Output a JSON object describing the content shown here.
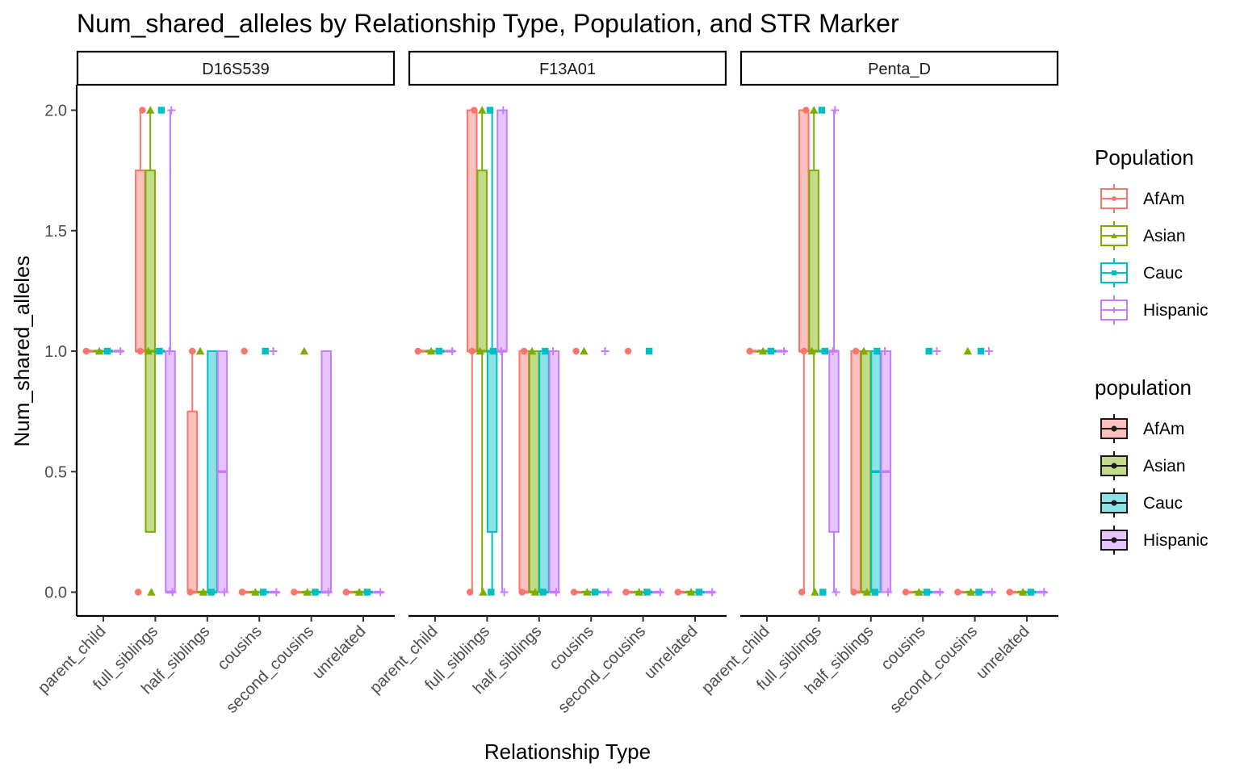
{
  "chart_data": {
    "type": "boxplot",
    "title": "Num_shared_alleles by Relationship Type, Population, and STR Marker",
    "xlabel": "Relationship Type",
    "ylabel": "Num_shared_alleles",
    "ylim": [
      -0.1,
      2.1
    ],
    "yticks": [
      "0.0",
      "0.5",
      "1.0",
      "1.5",
      "2.0"
    ],
    "ytick_values": [
      0,
      0.5,
      1,
      1.5,
      2
    ],
    "grid": false,
    "facets": [
      "D16S539",
      "F13A01",
      "Penta_D"
    ],
    "categories": [
      "parent_child",
      "full_siblings",
      "half_siblings",
      "cousins",
      "second_cousins",
      "unrelated"
    ],
    "populations": [
      "AfAm",
      "Asian",
      "Cauc",
      "Hispanic"
    ],
    "colors": {
      "AfAm": "#F8766D",
      "Asian": "#7CAE00",
      "Cauc": "#00BFC4",
      "Hispanic": "#C77CFF"
    },
    "shapes": {
      "AfAm": "circle",
      "Asian": "triangle",
      "Cauc": "square",
      "Hispanic": "plus"
    },
    "legends": [
      {
        "title": "Population",
        "style": "outline",
        "position": "right",
        "items": [
          "AfAm",
          "Asian",
          "Cauc",
          "Hispanic"
        ]
      },
      {
        "title": "population",
        "style": "filled",
        "position": "right",
        "items": [
          "AfAm",
          "Asian",
          "Cauc",
          "Hispanic"
        ]
      }
    ],
    "boxes": {
      "D16S539": {
        "parent_child": [
          [
            1,
            1,
            1,
            1,
            1
          ],
          [
            1,
            1,
            1,
            1,
            1
          ],
          [
            1,
            1,
            1,
            1,
            1
          ],
          [
            1,
            1,
            1,
            1,
            1
          ]
        ],
        "full_siblings": [
          [
            1,
            1,
            1,
            1.75,
            2
          ],
          [
            0.25,
            0.25,
            1,
            1.75,
            2
          ],
          [
            1,
            1,
            1,
            1,
            1
          ],
          [
            0,
            0,
            0,
            1,
            2
          ]
        ],
        "half_siblings": [
          [
            0,
            0,
            0,
            0.75,
            1
          ],
          [
            0,
            0,
            0,
            0,
            0
          ],
          [
            0,
            0,
            0,
            1,
            1
          ],
          [
            0,
            0,
            0.5,
            1,
            1
          ]
        ],
        "cousins": [
          [
            0,
            0,
            0,
            0,
            0
          ],
          [
            0,
            0,
            0,
            0,
            0
          ],
          [
            0,
            0,
            0,
            0,
            0
          ],
          [
            0,
            0,
            0,
            0,
            0
          ]
        ],
        "second_cousins": [
          [
            0,
            0,
            0,
            0,
            0
          ],
          [
            0,
            0,
            0,
            0,
            0
          ],
          [
            0,
            0,
            0,
            0,
            0
          ],
          [
            0,
            0,
            0,
            1,
            1
          ]
        ],
        "unrelated": [
          [
            0,
            0,
            0,
            0,
            0
          ],
          [
            0,
            0,
            0,
            0,
            0
          ],
          [
            0,
            0,
            0,
            0,
            0
          ],
          [
            0,
            0,
            0,
            0,
            0
          ]
        ]
      },
      "F13A01": {
        "parent_child": [
          [
            1,
            1,
            1,
            1,
            1
          ],
          [
            1,
            1,
            1,
            1,
            1
          ],
          [
            1,
            1,
            1,
            1,
            1
          ],
          [
            1,
            1,
            1,
            1,
            1
          ]
        ],
        "full_siblings": [
          [
            0,
            1,
            1,
            2,
            2
          ],
          [
            0,
            1,
            1,
            1.75,
            2
          ],
          [
            0,
            0.25,
            1,
            1,
            2
          ],
          [
            0,
            1,
            1,
            2,
            2
          ]
        ],
        "half_siblings": [
          [
            0,
            0,
            0,
            1,
            1
          ],
          [
            0,
            0,
            0,
            1,
            1
          ],
          [
            0,
            0,
            0,
            1,
            1
          ],
          [
            0,
            0,
            0,
            1,
            1
          ]
        ],
        "cousins": [
          [
            0,
            0,
            0,
            0,
            0
          ],
          [
            0,
            0,
            0,
            0,
            0
          ],
          [
            0,
            0,
            0,
            0,
            0
          ],
          [
            0,
            0,
            0,
            0,
            0
          ]
        ],
        "second_cousins": [
          [
            0,
            0,
            0,
            0,
            0
          ],
          [
            0,
            0,
            0,
            0,
            0
          ],
          [
            0,
            0,
            0,
            0,
            0
          ],
          [
            0,
            0,
            0,
            0,
            0
          ]
        ],
        "unrelated": [
          [
            0,
            0,
            0,
            0,
            0
          ],
          [
            0,
            0,
            0,
            0,
            0
          ],
          [
            0,
            0,
            0,
            0,
            0
          ],
          [
            0,
            0,
            0,
            0,
            0
          ]
        ]
      },
      "Penta_D": {
        "parent_child": [
          [
            1,
            1,
            1,
            1,
            1
          ],
          [
            1,
            1,
            1,
            1,
            1
          ],
          [
            1,
            1,
            1,
            1,
            1
          ],
          [
            1,
            1,
            1,
            1,
            1
          ]
        ],
        "full_siblings": [
          [
            0,
            1,
            1,
            2,
            2
          ],
          [
            0,
            1,
            1,
            1.75,
            2
          ],
          [
            1,
            1,
            1,
            1,
            1
          ],
          [
            0,
            0.25,
            1,
            1,
            2
          ]
        ],
        "half_siblings": [
          [
            0,
            0,
            0,
            1,
            1
          ],
          [
            0,
            0,
            0,
            1,
            1
          ],
          [
            0,
            0,
            0.5,
            1,
            1
          ],
          [
            0,
            0,
            0.5,
            1,
            1
          ]
        ],
        "cousins": [
          [
            0,
            0,
            0,
            0,
            0
          ],
          [
            0,
            0,
            0,
            0,
            0
          ],
          [
            0,
            0,
            0,
            0,
            0
          ],
          [
            0,
            0,
            0,
            0,
            0
          ]
        ],
        "second_cousins": [
          [
            0,
            0,
            0,
            0,
            0
          ],
          [
            0,
            0,
            0,
            0,
            0
          ],
          [
            0,
            0,
            0,
            0,
            0
          ],
          [
            0,
            0,
            0,
            0,
            0
          ]
        ],
        "unrelated": [
          [
            0,
            0,
            0,
            0,
            0
          ],
          [
            0,
            0,
            0,
            0,
            0
          ],
          [
            0,
            0,
            0,
            0,
            0
          ],
          [
            0,
            0,
            0,
            0,
            0
          ]
        ]
      }
    },
    "points": {
      "D16S539": {
        "parent_child": [
          [
            1
          ],
          [
            1
          ],
          [
            1
          ],
          [
            1
          ]
        ],
        "full_siblings": [
          [
            0,
            1,
            2
          ],
          [
            0,
            1,
            2
          ],
          [
            1,
            2
          ],
          [
            0,
            1,
            2
          ]
        ],
        "half_siblings": [
          [
            0,
            1
          ],
          [
            0,
            1
          ],
          [
            0
          ],
          [
            0
          ]
        ],
        "cousins": [
          [
            0,
            1
          ],
          [
            0
          ],
          [
            0,
            1
          ],
          [
            0,
            1
          ]
        ],
        "second_cousins": [
          [
            0
          ],
          [
            0,
            1
          ],
          [
            0
          ],
          [
            0
          ]
        ],
        "unrelated": [
          [
            0
          ],
          [
            0
          ],
          [
            0
          ],
          [
            0
          ]
        ]
      },
      "F13A01": {
        "parent_child": [
          [
            1
          ],
          [
            1
          ],
          [
            1
          ],
          [
            1
          ]
        ],
        "full_siblings": [
          [
            0,
            1,
            2
          ],
          [
            0,
            1,
            2
          ],
          [
            0,
            1,
            2
          ],
          [
            0,
            1,
            2
          ]
        ],
        "half_siblings": [
          [
            0,
            1
          ],
          [
            0,
            1
          ],
          [
            0,
            1
          ],
          [
            0,
            1
          ]
        ],
        "cousins": [
          [
            0,
            1
          ],
          [
            0,
            1
          ],
          [
            0
          ],
          [
            0,
            1
          ]
        ],
        "second_cousins": [
          [
            0,
            1
          ],
          [
            0
          ],
          [
            0,
            1
          ],
          [
            0
          ]
        ],
        "unrelated": [
          [
            0
          ],
          [
            0
          ],
          [
            0
          ],
          [
            0
          ]
        ]
      },
      "Penta_D": {
        "parent_child": [
          [
            1
          ],
          [
            1
          ],
          [
            1
          ],
          [
            1
          ]
        ],
        "full_siblings": [
          [
            0,
            1,
            2
          ],
          [
            0,
            1,
            2
          ],
          [
            0,
            1,
            2
          ],
          [
            0,
            1,
            2
          ]
        ],
        "half_siblings": [
          [
            0,
            1
          ],
          [
            0,
            1
          ],
          [
            0,
            1
          ],
          [
            0,
            1
          ]
        ],
        "cousins": [
          [
            0
          ],
          [
            0
          ],
          [
            0,
            1
          ],
          [
            0,
            1
          ]
        ],
        "second_cousins": [
          [
            0
          ],
          [
            0,
            1
          ],
          [
            0,
            1
          ],
          [
            0,
            1
          ]
        ],
        "unrelated": [
          [
            0
          ],
          [
            0
          ],
          [
            0
          ],
          [
            0
          ]
        ]
      }
    }
  }
}
